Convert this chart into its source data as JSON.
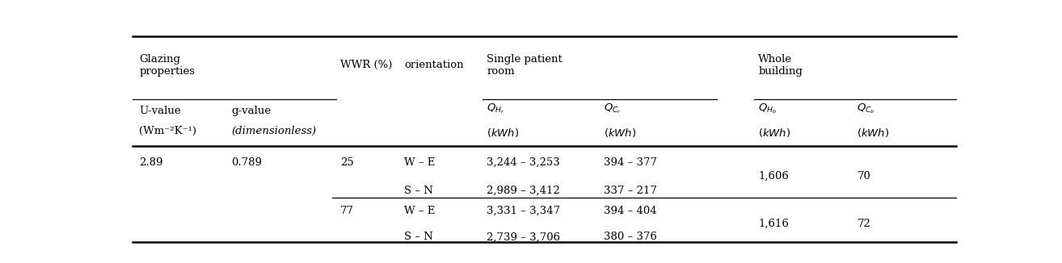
{
  "figsize": [
    13.14,
    3.26
  ],
  "dpi": 100,
  "bg_color": "#ffffff",
  "font_size": 9.5,
  "line_color": "#000000",
  "text_color": "#000000",
  "col_x": {
    "u_value": 0.008,
    "g_value": 0.12,
    "wwr": 0.252,
    "orient": 0.33,
    "qhr": 0.43,
    "qcr": 0.572,
    "qhb": 0.76,
    "qcb": 0.88
  },
  "rows": [
    {
      "u": "2.89",
      "g": "0.789",
      "wwr": "25",
      "orient": "W – E",
      "qhr": "3,244 – 3,253",
      "qcr": "394 – 377",
      "qhb": "1,606",
      "qcb": "70"
    },
    {
      "u": "",
      "g": "",
      "wwr": "",
      "orient": "S – N",
      "qhr": "2,989 – 3,412",
      "qcr": "337 – 217",
      "qhb": "",
      "qcb": ""
    },
    {
      "u": "",
      "g": "",
      "wwr": "77",
      "orient": "W – E",
      "qhr": "3,331 – 3,347",
      "qcr": "394 – 404",
      "qhb": "1,616",
      "qcb": "72"
    },
    {
      "u": "",
      "g": "",
      "wwr": "",
      "orient": "S – N",
      "qhr": "2,739 – 3,706",
      "qcr": "380 – 376",
      "qhb": "",
      "qcb": ""
    }
  ]
}
